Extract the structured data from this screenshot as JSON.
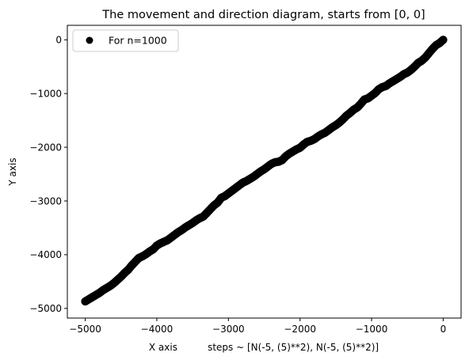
{
  "chart_data": {
    "type": "scatter",
    "title": "The movement and direction diagram, starts from [0, 0]",
    "xlabel": "X axis          steps ~ [N(-5, (5)**2), N(-5, (5)**2)]",
    "ylabel": "Y axis",
    "xlim": [
      -5250,
      250
    ],
    "ylim": [
      -5180,
      270
    ],
    "xticks": [
      -5000,
      -4000,
      -3000,
      -2000,
      -1000,
      0
    ],
    "xtick_labels": [
      "−5000",
      "−4000",
      "−3000",
      "−2000",
      "−1000",
      "0"
    ],
    "yticks": [
      0,
      -1000,
      -2000,
      -3000,
      -4000,
      -5000
    ],
    "ytick_labels": [
      "0",
      "−1000",
      "−2000",
      "−3000",
      "−4000",
      "−5000"
    ],
    "grid": false,
    "legend_placement": "upper-left",
    "series": [
      {
        "name": "For n=1000",
        "color": "#000000",
        "marker": "circle",
        "x": [
          0,
          -50,
          -100,
          -150,
          -200,
          -250,
          -300,
          -350,
          -400,
          -450,
          -500,
          -550,
          -600,
          -650,
          -700,
          -750,
          -800,
          -850,
          -900,
          -950,
          -1000,
          -1050,
          -1100,
          -1150,
          -1200,
          -1250,
          -1300,
          -1350,
          -1400,
          -1450,
          -1500,
          -1550,
          -1600,
          -1650,
          -1700,
          -1750,
          -1800,
          -1850,
          -1900,
          -1950,
          -2000,
          -2050,
          -2100,
          -2150,
          -2200,
          -2250,
          -2300,
          -2350,
          -2400,
          -2450,
          -2500,
          -2550,
          -2600,
          -2650,
          -2700,
          -2750,
          -2800,
          -2850,
          -2900,
          -2950,
          -3000,
          -3050,
          -3100,
          -3150,
          -3200,
          -3250,
          -3300,
          -3350,
          -3400,
          -3450,
          -3500,
          -3550,
          -3600,
          -3650,
          -3700,
          -3750,
          -3800,
          -3850,
          -3900,
          -3950,
          -4000,
          -4050,
          -4100,
          -4150,
          -4200,
          -4250,
          -4300,
          -4350,
          -4400,
          -4450,
          -4500,
          -4550,
          -4600,
          -4650,
          -4700,
          -4750,
          -4800,
          -4850,
          -4900,
          -4950,
          -5000
        ],
        "y": [
          0,
          -60,
          -100,
          -170,
          -250,
          -330,
          -390,
          -430,
          -500,
          -560,
          -610,
          -640,
          -690,
          -730,
          -770,
          -810,
          -860,
          -880,
          -920,
          -990,
          -1040,
          -1090,
          -1110,
          -1190,
          -1260,
          -1300,
          -1360,
          -1410,
          -1480,
          -1540,
          -1590,
          -1630,
          -1680,
          -1730,
          -1760,
          -1800,
          -1850,
          -1880,
          -1900,
          -1950,
          -2010,
          -2040,
          -2080,
          -2120,
          -2170,
          -2240,
          -2270,
          -2280,
          -2310,
          -2360,
          -2410,
          -2450,
          -2500,
          -2550,
          -2590,
          -2630,
          -2660,
          -2710,
          -2760,
          -2810,
          -2860,
          -2910,
          -2940,
          -3030,
          -3080,
          -3150,
          -3220,
          -3290,
          -3320,
          -3360,
          -3410,
          -3450,
          -3490,
          -3540,
          -3580,
          -3630,
          -3680,
          -3730,
          -3760,
          -3790,
          -3830,
          -3900,
          -3940,
          -3990,
          -4030,
          -4060,
          -4130,
          -4200,
          -4280,
          -4340,
          -4410,
          -4470,
          -4530,
          -4580,
          -4620,
          -4660,
          -4710,
          -4750,
          -4790,
          -4830,
          -4870
        ]
      }
    ]
  }
}
